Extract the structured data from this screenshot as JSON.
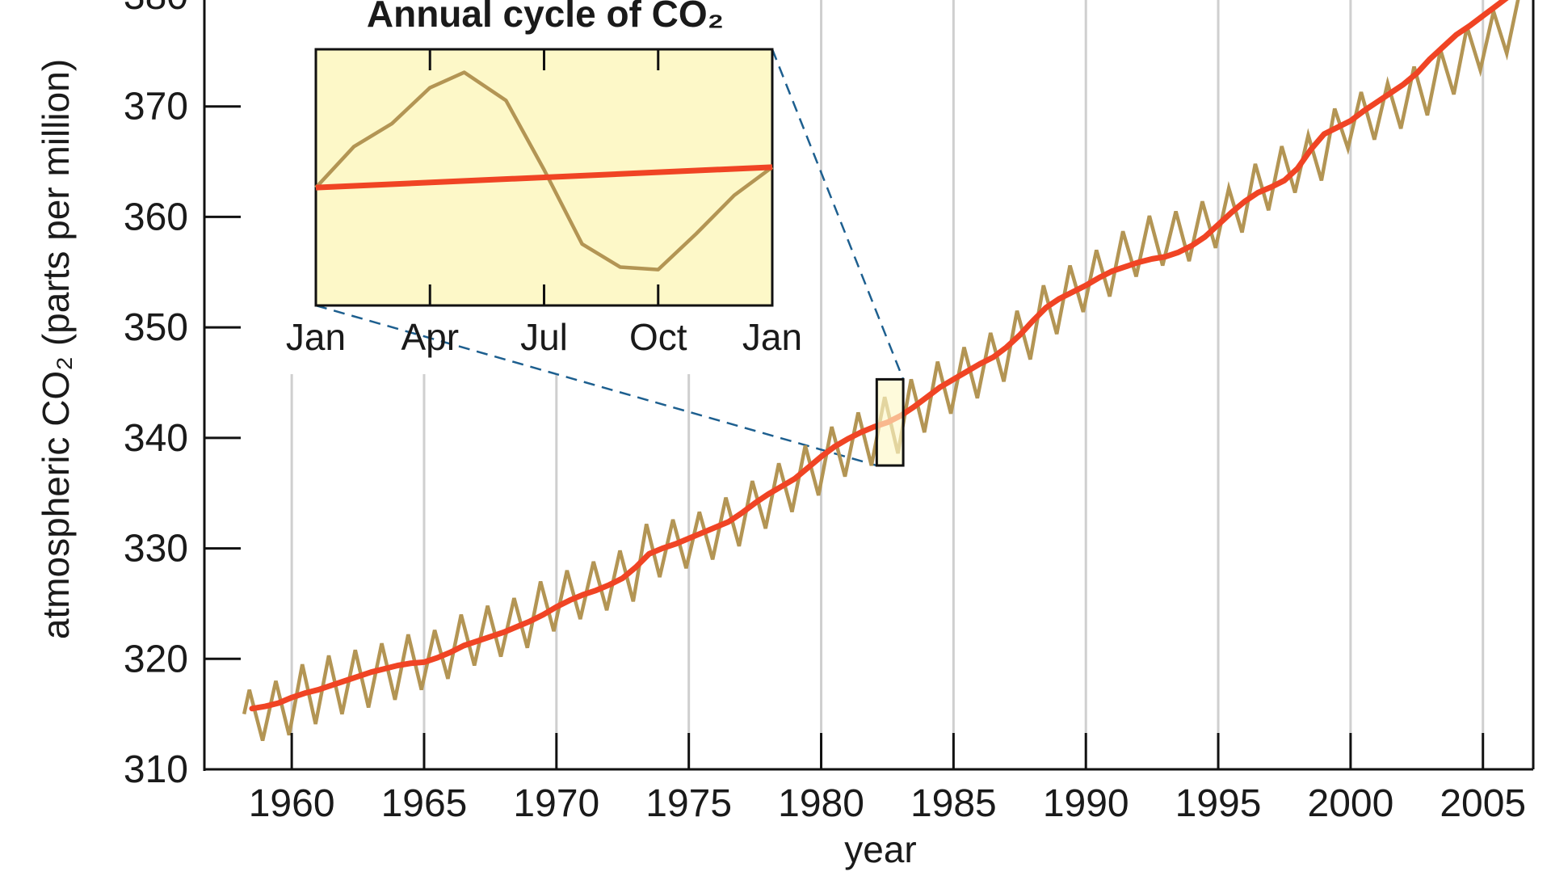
{
  "colors": {
    "background": "#ffffff",
    "axis": "#111111",
    "grid": "#cfcfcf",
    "seasonal_line": "#b39554",
    "trend_line": "#f04424",
    "inset_fill": "#fdf8c8",
    "connector": "#1d5f8f"
  },
  "chart_data": [
    {
      "type": "line",
      "title": "",
      "xlabel": "year",
      "ylabel": "atmospheric CO₂ (parts per million)",
      "xlim": [
        1956.7,
        2006.9
      ],
      "ylim": [
        310,
        380
      ],
      "xticks": [
        1960,
        1965,
        1970,
        1975,
        1980,
        1985,
        1990,
        1995,
        2000,
        2005
      ],
      "xtick_labels": [
        "1960",
        "1965",
        "1970",
        "1975",
        "1980",
        "1985",
        "1990",
        "1995",
        "2000",
        "2005"
      ],
      "yticks": [
        310,
        320,
        330,
        340,
        350,
        360,
        370,
        380
      ],
      "ytick_labels": [
        "310",
        "320",
        "330",
        "340",
        "350",
        "360",
        "370",
        "380"
      ],
      "grid": "vertical lines at each year tick",
      "highlight_box": {
        "x": [
          1982.1,
          1983.1
        ],
        "y": [
          337.5,
          345.3
        ]
      },
      "series": [
        {
          "role": "monthly",
          "x": [
            1958.2,
            1958.4,
            1958.9,
            1959.4,
            1959.9,
            1960.4,
            1960.9,
            1961.4,
            1961.9,
            1962.4,
            1962.9,
            1963.4,
            1963.9,
            1964.4,
            1964.9,
            1965.4,
            1965.9,
            1966.4,
            1966.9,
            1967.4,
            1967.9,
            1968.4,
            1968.9,
            1969.4,
            1969.9,
            1970.4,
            1970.9,
            1971.4,
            1971.9,
            1972.4,
            1972.9,
            1973.4,
            1973.9,
            1974.4,
            1974.9,
            1975.4,
            1975.9,
            1976.4,
            1976.9,
            1977.4,
            1977.9,
            1978.4,
            1978.9,
            1979.4,
            1979.9,
            1980.4,
            1980.9,
            1981.4,
            1981.9,
            1982.4,
            1982.9,
            1983.4,
            1983.9,
            1984.4,
            1984.9,
            1985.4,
            1985.9,
            1986.4,
            1986.9,
            1987.4,
            1987.9,
            1988.4,
            1988.9,
            1989.4,
            1989.9,
            1990.4,
            1990.9,
            1991.4,
            1991.9,
            1992.4,
            1992.9,
            1993.4,
            1993.9,
            1994.4,
            1994.9,
            1995.4,
            1995.9,
            1996.4,
            1996.9,
            1997.4,
            1997.9,
            1998.4,
            1998.9,
            1999.4,
            1999.9,
            2000.4,
            2000.9,
            2001.4,
            2001.9,
            2002.4,
            2002.9,
            2003.4,
            2003.9,
            2004.4,
            2004.9,
            2005.4,
            2005.9,
            2006.4
          ],
          "y": [
            315.0,
            317.2,
            312.6,
            318.0,
            313.1,
            319.5,
            314.1,
            320.3,
            315.0,
            320.8,
            315.6,
            321.4,
            316.3,
            322.2,
            317.2,
            322.6,
            318.2,
            324.0,
            319.4,
            324.8,
            320.2,
            325.5,
            321.0,
            327.0,
            322.5,
            328.0,
            323.6,
            328.8,
            324.4,
            329.8,
            325.2,
            332.2,
            327.4,
            332.6,
            328.2,
            333.3,
            329.0,
            334.6,
            330.2,
            336.1,
            331.8,
            337.7,
            333.3,
            339.3,
            334.8,
            341.0,
            336.5,
            342.3,
            337.5,
            343.7,
            338.6,
            345.3,
            340.5,
            346.9,
            342.2,
            348.2,
            343.6,
            349.5,
            345.1,
            351.5,
            347.1,
            353.8,
            349.4,
            355.6,
            351.4,
            357.0,
            352.8,
            358.7,
            354.6,
            360.1,
            355.6,
            360.5,
            356.0,
            361.4,
            357.2,
            362.6,
            358.6,
            364.8,
            360.6,
            366.4,
            362.2,
            367.4,
            363.3,
            369.8,
            366.2,
            371.3,
            367.0,
            372.1,
            368.0,
            373.6,
            369.2,
            375.1,
            371.1,
            377.2,
            373.3,
            378.6,
            374.8,
            380.5
          ]
        },
        {
          "role": "annual mean",
          "x": [
            1958.5,
            1959.0,
            1959.5,
            1960.0,
            1960.5,
            1961.0,
            1961.5,
            1962.0,
            1962.5,
            1963.0,
            1963.5,
            1964.0,
            1964.5,
            1965.0,
            1965.5,
            1966.0,
            1966.5,
            1967.0,
            1967.5,
            1968.0,
            1968.5,
            1969.0,
            1969.5,
            1970.0,
            1970.5,
            1971.0,
            1971.5,
            1972.0,
            1972.5,
            1973.0,
            1973.5,
            1974.0,
            1974.5,
            1975.0,
            1975.5,
            1976.0,
            1976.5,
            1977.0,
            1977.5,
            1978.0,
            1978.5,
            1979.0,
            1979.5,
            1980.0,
            1980.5,
            1981.0,
            1981.5,
            1982.0,
            1982.5,
            1983.0,
            1983.5,
            1984.0,
            1984.5,
            1985.0,
            1985.5,
            1986.0,
            1986.5,
            1987.0,
            1987.5,
            1988.0,
            1988.5,
            1989.0,
            1989.5,
            1990.0,
            1990.5,
            1991.0,
            1991.5,
            1992.0,
            1992.5,
            1993.0,
            1993.5,
            1994.0,
            1994.5,
            1995.0,
            1995.5,
            1996.0,
            1996.5,
            1997.0,
            1997.5,
            1998.0,
            1998.5,
            1999.0,
            1999.5,
            2000.0,
            2000.5,
            2001.0,
            2001.5,
            2002.0,
            2002.5,
            2003.0,
            2003.5,
            2004.0,
            2004.5,
            2005.0,
            2005.5,
            2006.0,
            2006.4
          ],
          "y": [
            315.5,
            315.7,
            316.0,
            316.5,
            316.9,
            317.2,
            317.6,
            318.0,
            318.4,
            318.8,
            319.1,
            319.4,
            319.6,
            319.7,
            320.1,
            320.6,
            321.2,
            321.6,
            322.0,
            322.4,
            322.9,
            323.4,
            324.0,
            324.7,
            325.3,
            325.8,
            326.2,
            326.7,
            327.3,
            328.3,
            329.5,
            330.0,
            330.4,
            330.9,
            331.4,
            331.9,
            332.4,
            333.2,
            334.1,
            334.9,
            335.6,
            336.3,
            337.3,
            338.3,
            339.2,
            339.9,
            340.5,
            341.0,
            341.4,
            342.0,
            342.8,
            343.7,
            344.6,
            345.3,
            346.0,
            346.7,
            347.3,
            348.2,
            349.3,
            350.6,
            351.8,
            352.6,
            353.2,
            353.8,
            354.5,
            355.1,
            355.5,
            355.9,
            356.2,
            356.4,
            356.8,
            357.4,
            358.2,
            359.3,
            360.4,
            361.4,
            362.2,
            362.7,
            363.3,
            364.4,
            366.1,
            367.5,
            368.1,
            368.7,
            369.6,
            370.4,
            371.2,
            372.0,
            373.0,
            374.3,
            375.4,
            376.5,
            377.3,
            378.2,
            379.1,
            380.0,
            380.9
          ]
        }
      ]
    },
    {
      "type": "line",
      "title": "Annual cycle of CO₂",
      "xticks": [
        0,
        3,
        6,
        9,
        12
      ],
      "xtick_labels": [
        "Jan",
        "Apr",
        "Jul",
        "Oct",
        "Jan"
      ],
      "xlim": [
        0,
        12
      ],
      "ylim": [
        0,
        100
      ],
      "series": [
        {
          "role": "seasonal cycle",
          "x": [
            0,
            1,
            2,
            3,
            3.9,
            5,
            6,
            7,
            8,
            9,
            10,
            11,
            12
          ],
          "y": [
            46,
            62,
            71,
            85,
            91,
            80,
            53,
            24,
            15,
            14,
            28,
            43,
            54
          ]
        },
        {
          "role": "trend",
          "x": [
            0,
            12
          ],
          "y": [
            46,
            54
          ]
        }
      ]
    }
  ]
}
